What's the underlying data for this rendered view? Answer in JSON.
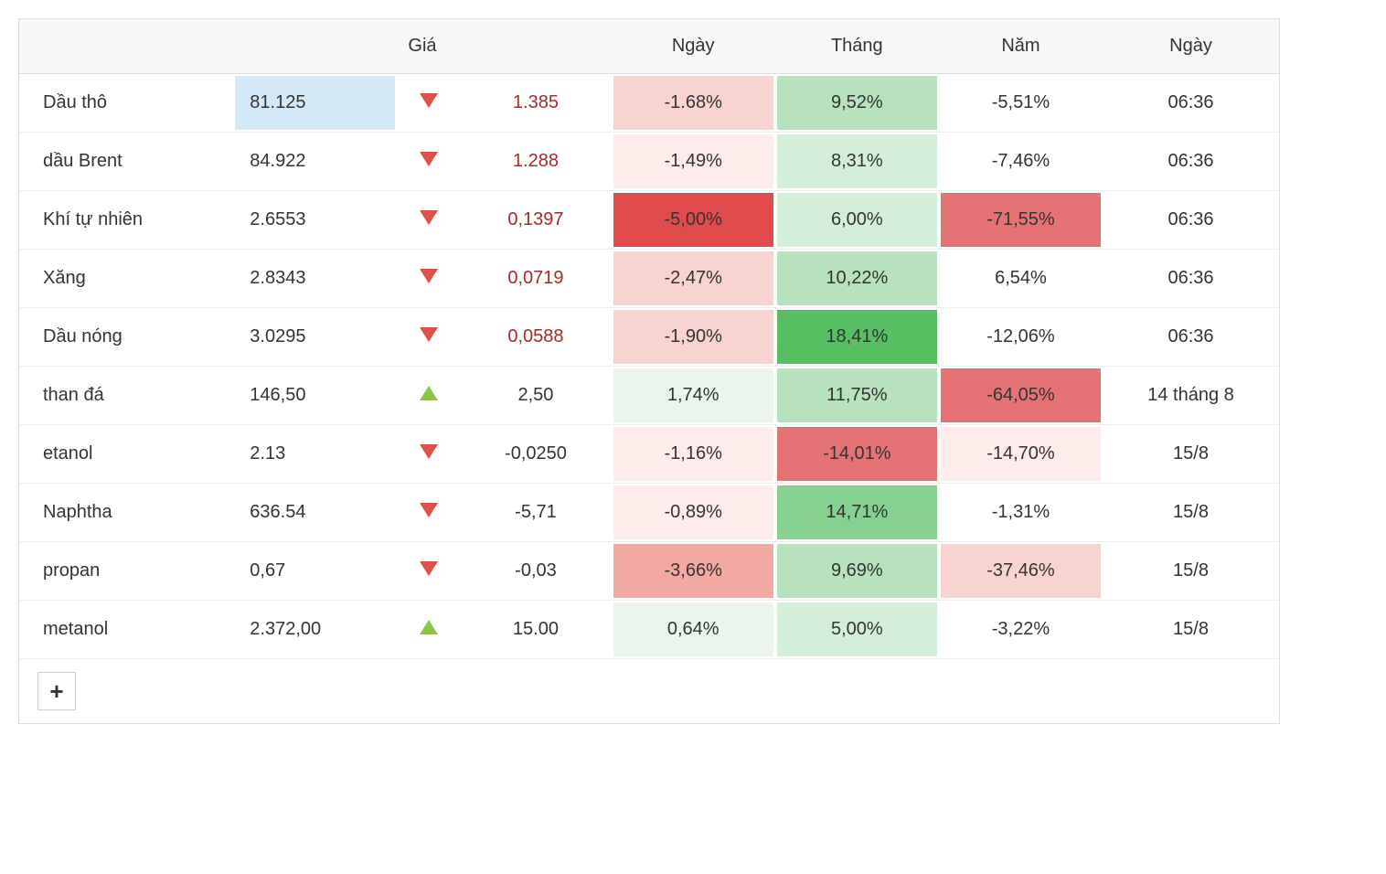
{
  "colors": {
    "border": "#dddddd",
    "row_border": "#eeeeee",
    "header_bg": "#f7f7f7",
    "text": "#333333",
    "neg_text": "#a52a2a",
    "tri_down": "#d9534f",
    "tri_up": "#8cc63f",
    "price_highlight": "#d4e9f7"
  },
  "heat": {
    "neg_faint": "#fdecea",
    "neg_light": "#f9d3cf",
    "neg_mid": "#f2a9a2",
    "neg_strong": "#e57373",
    "neg_max": "#e04b4b",
    "pos_faint": "#eaf6ec",
    "pos_light": "#d4efd9",
    "pos_mid": "#b6e3bd",
    "pos_strong": "#87d18f",
    "pos_max": "#58c063"
  },
  "header": {
    "name": "",
    "price": "Giá",
    "arrow": "",
    "change": "",
    "day": "Ngày",
    "month": "Tháng",
    "year": "Năm",
    "date": "Ngày"
  },
  "col_widths": {
    "name": "17%",
    "price": "13%",
    "arrow": "5%",
    "change": "12%",
    "day": "13%",
    "month": "13%",
    "year": "13%",
    "date": "14%"
  },
  "footer": {
    "add_label": "+"
  },
  "rows": [
    {
      "name": "Dầu thô",
      "price": "81.125",
      "price_hl": true,
      "dir": "down",
      "change": "1.385",
      "change_neg": true,
      "day": {
        "v": "-1.68%",
        "bg": "neg_light"
      },
      "month": {
        "v": "9,52%",
        "bg": "pos_mid"
      },
      "year": {
        "v": "-5,51%",
        "bg": null
      },
      "date": "06:36"
    },
    {
      "name": "dầu Brent",
      "price": "84.922",
      "dir": "down",
      "change": "1.288",
      "change_neg": true,
      "day": {
        "v": "-1,49%",
        "bg": "neg_faint"
      },
      "month": {
        "v": "8,31%",
        "bg": "pos_light"
      },
      "year": {
        "v": "-7,46%",
        "bg": null
      },
      "date": "06:36"
    },
    {
      "name": "Khí tự nhiên",
      "price": "2.6553",
      "dir": "down",
      "change": "0,1397",
      "change_neg": true,
      "day": {
        "v": "-5,00%",
        "bg": "neg_max"
      },
      "month": {
        "v": "6,00%",
        "bg": "pos_light"
      },
      "year": {
        "v": "-71,55%",
        "bg": "neg_strong"
      },
      "date": "06:36"
    },
    {
      "name": "Xăng",
      "price": "2.8343",
      "dir": "down",
      "change": "0,0719",
      "change_neg": true,
      "day": {
        "v": "-2,47%",
        "bg": "neg_light"
      },
      "month": {
        "v": "10,22%",
        "bg": "pos_mid"
      },
      "year": {
        "v": "6,54%",
        "bg": null
      },
      "date": "06:36"
    },
    {
      "name": "Dầu nóng",
      "price": "3.0295",
      "dir": "down",
      "change": "0,0588",
      "change_neg": true,
      "day": {
        "v": "-1,90%",
        "bg": "neg_light"
      },
      "month": {
        "v": "18,41%",
        "bg": "pos_max"
      },
      "year": {
        "v": "-12,06%",
        "bg": null
      },
      "date": "06:36"
    },
    {
      "name": "than đá",
      "price": "146,50",
      "dir": "up",
      "change": "2,50",
      "change_neg": false,
      "day": {
        "v": "1,74%",
        "bg": "pos_faint"
      },
      "month": {
        "v": "11,75%",
        "bg": "pos_mid"
      },
      "year": {
        "v": "-64,05%",
        "bg": "neg_strong"
      },
      "date": "14 tháng 8"
    },
    {
      "name": "etanol",
      "price": "2.13",
      "dir": "down",
      "change": "-0,0250",
      "change_neg": false,
      "day": {
        "v": "-1,16%",
        "bg": "neg_faint"
      },
      "month": {
        "v": "-14,01%",
        "bg": "neg_strong"
      },
      "year": {
        "v": "-14,70%",
        "bg": "neg_faint"
      },
      "date": "15/8"
    },
    {
      "name": "Naphtha",
      "price": "636.54",
      "dir": "down",
      "change": "-5,71",
      "change_neg": false,
      "day": {
        "v": "-0,89%",
        "bg": "neg_faint"
      },
      "month": {
        "v": "14,71%",
        "bg": "pos_strong"
      },
      "year": {
        "v": "-1,31%",
        "bg": null
      },
      "date": "15/8"
    },
    {
      "name": "propan",
      "price": "0,67",
      "dir": "down",
      "change": "-0,03",
      "change_neg": false,
      "day": {
        "v": "-3,66%",
        "bg": "neg_mid"
      },
      "month": {
        "v": "9,69%",
        "bg": "pos_mid"
      },
      "year": {
        "v": "-37,46%",
        "bg": "neg_light"
      },
      "date": "15/8"
    },
    {
      "name": "metanol",
      "price": "2.372,00",
      "dir": "up",
      "change": "15.00",
      "change_neg": false,
      "day": {
        "v": "0,64%",
        "bg": "pos_faint"
      },
      "month": {
        "v": "5,00%",
        "bg": "pos_light"
      },
      "year": {
        "v": "-3,22%",
        "bg": null
      },
      "date": "15/8"
    }
  ]
}
